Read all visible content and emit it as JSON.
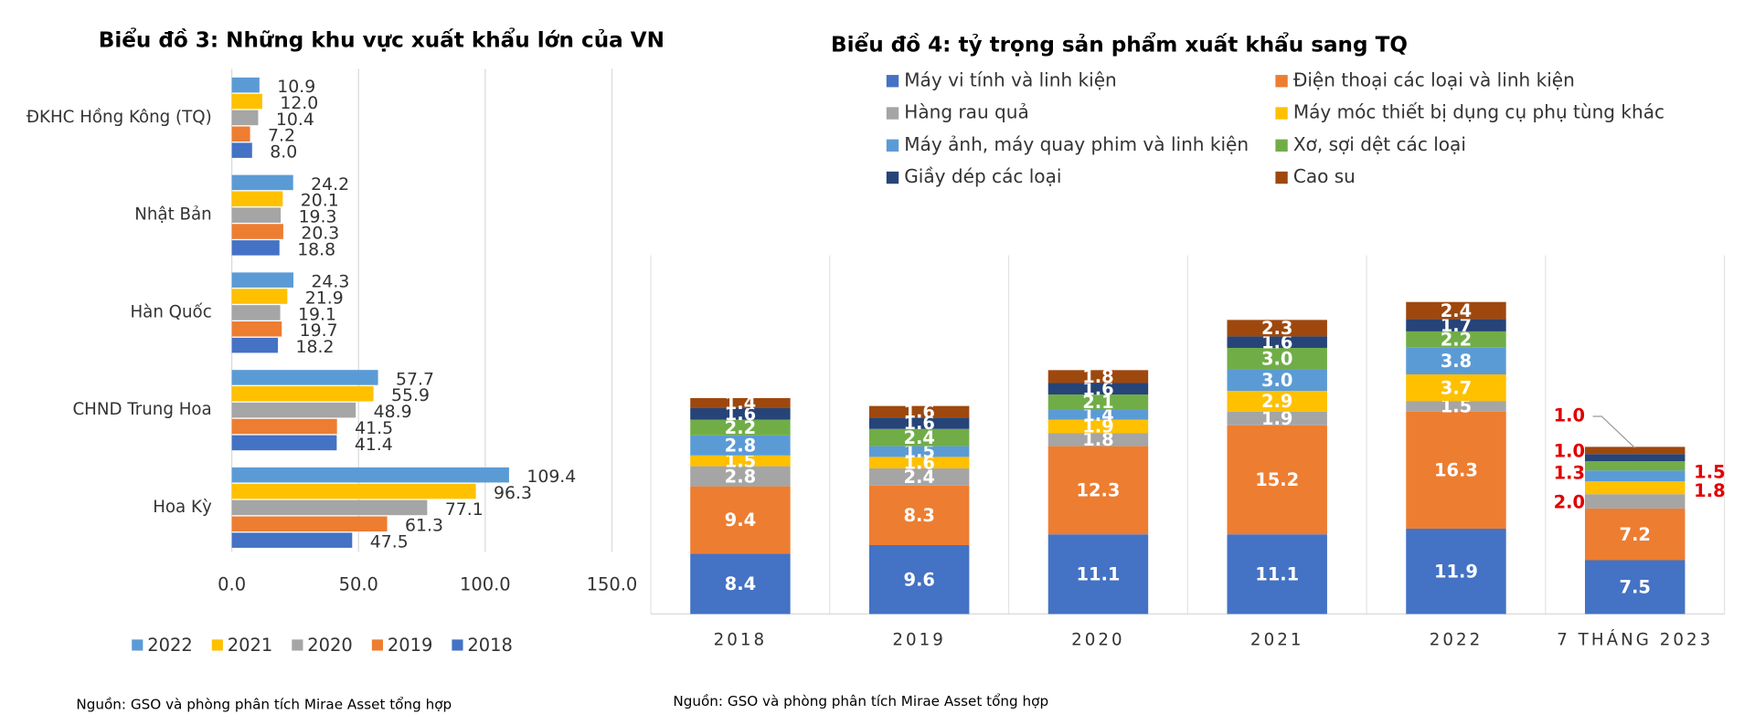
{
  "chart_data": [
    {
      "type": "hbar",
      "title": "Biểu đồ 3: Những khu vực xuất khẩu lớn của VN",
      "source": "Nguồn: GSO và phòng phân tích Mirae Asset tổng hợp",
      "categories": [
        "ĐKHC Hồng Kông (TQ)",
        "Nhật Bản",
        "Hàn Quốc",
        "CHND Trung Hoa",
        "Hoa Kỳ"
      ],
      "series": [
        {
          "name": "2022",
          "color": "#5b9bd5",
          "values": [
            10.9,
            24.2,
            24.3,
            57.7,
            109.4
          ],
          "value_labels": [
            "10.9",
            "24.2",
            "24.3",
            "57.7",
            "109.4"
          ]
        },
        {
          "name": "2021",
          "color": "#ffc000",
          "values": [
            12.0,
            20.1,
            21.9,
            55.9,
            96.3
          ],
          "value_labels": [
            "12.0",
            "20.1",
            "21.9",
            "55.9",
            "96.3"
          ]
        },
        {
          "name": "2020",
          "color": "#a5a5a5",
          "values": [
            10.4,
            19.3,
            19.1,
            48.9,
            77.1
          ],
          "value_labels": [
            "10.4",
            "19.3",
            "19.1",
            "48.9",
            "77.1"
          ]
        },
        {
          "name": "2019",
          "color": "#ed7d31",
          "values": [
            7.2,
            20.3,
            19.7,
            41.5,
            61.3
          ],
          "value_labels": [
            "7.2",
            "20.3",
            "19.7",
            "41.5",
            "61.3"
          ]
        },
        {
          "name": "2018",
          "color": "#4472c4",
          "values": [
            8.0,
            18.8,
            18.2,
            41.4,
            47.5
          ],
          "value_labels": [
            "8.0",
            "18.8",
            "18.2",
            "41.4",
            "47.5"
          ]
        }
      ],
      "xlim": [
        0,
        150
      ],
      "xticks": [
        {
          "value": 0,
          "label": "0.0"
        },
        {
          "value": 50,
          "label": "50.0"
        },
        {
          "value": 100,
          "label": "100.0"
        },
        {
          "value": 150,
          "label": "150.0"
        }
      ],
      "grid": true,
      "legend": "bottom"
    },
    {
      "type": "stackedbar",
      "title": "Biểu đồ 4:  tỷ trọng sản phẩm xuất khẩu sang TQ",
      "source": "Nguồn: GSO và phòng phân tích Mirae Asset tổng hợp",
      "categories": [
        "2018",
        "2019",
        "2020",
        "2021",
        "2022",
        "7 THÁNG 2023"
      ],
      "series": [
        {
          "name": "Máy vi tính và linh kiện",
          "color": "#4472c4",
          "values": [
            8.4,
            9.6,
            11.1,
            11.1,
            11.9,
            7.5
          ],
          "value_labels": [
            "8.4",
            "9.6",
            "11.1",
            "11.1",
            "11.9",
            "7.5"
          ]
        },
        {
          "name": "Điện thoại các loại và linh kiện",
          "color": "#ed7d31",
          "values": [
            9.4,
            8.3,
            12.3,
            15.2,
            16.3,
            7.2
          ],
          "value_labels": [
            "9.4",
            "8.3",
            "12.3",
            "15.2",
            "16.3",
            "7.2"
          ]
        },
        {
          "name": "Hàng rau quả",
          "color": "#a5a5a5",
          "values": [
            2.8,
            2.4,
            1.8,
            1.9,
            1.5,
            2.0
          ],
          "value_labels": [
            "2.8",
            "2.4",
            "1.8",
            "1.9",
            "1.5",
            "2.0"
          ]
        },
        {
          "name": "Máy móc thiết bị dụng cụ phụ tùng khác",
          "color": "#ffc000",
          "values": [
            1.5,
            1.6,
            1.9,
            2.9,
            3.7,
            1.8
          ],
          "value_labels": [
            "1.5",
            "1.6",
            "1.9",
            "2.9",
            "3.7",
            "1.8"
          ]
        },
        {
          "name": "Máy ảnh, máy quay phim và linh kiện",
          "color": "#5b9bd5",
          "values": [
            2.8,
            1.5,
            1.4,
            3.0,
            3.8,
            1.5
          ],
          "value_labels": [
            "2.8",
            "1.5",
            "1.4",
            "3.0",
            "3.8",
            "1.5"
          ]
        },
        {
          "name": "Xơ, sợi dệt các loại",
          "color": "#70ad47",
          "values": [
            2.2,
            2.4,
            2.1,
            3.0,
            2.2,
            1.3
          ],
          "value_labels": [
            "2.2",
            "2.4",
            "2.1",
            "3.0",
            "2.2",
            "1.3"
          ]
        },
        {
          "name": "Giầy dép các loại",
          "color": "#264478",
          "values": [
            1.6,
            1.6,
            1.6,
            1.6,
            1.7,
            1.0
          ],
          "value_labels": [
            "1.6",
            "1.6",
            "1.6",
            "1.6",
            "1.7",
            "1.0"
          ]
        },
        {
          "name": "Cao su",
          "color": "#9e480e",
          "values": [
            1.4,
            1.6,
            1.8,
            2.3,
            2.4,
            1.0
          ],
          "value_labels": [
            "1.4",
            "1.6",
            "1.8",
            "2.3",
            "2.4",
            "1.0"
          ]
        }
      ],
      "legend": "top"
    }
  ]
}
